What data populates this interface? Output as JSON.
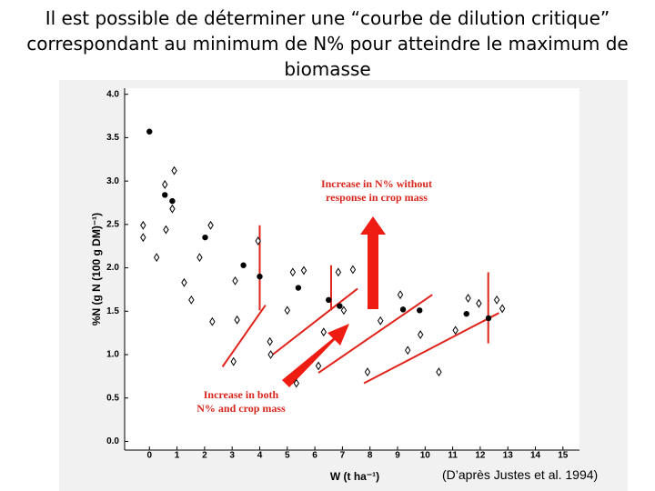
{
  "chart_data": {
    "type": "scatter",
    "title": "Il est possible de déterminer une “courbe de dilution critique” correspondant au minimum de N% pour atteindre le maximum de biomasse",
    "x_label": "W (t ha⁻¹)",
    "y_label": "%N (g N (100 g DM)⁻¹)",
    "xlim": [
      -0.9,
      15.6
    ],
    "ylim": [
      -0.1,
      4.07
    ],
    "xticks": [
      0,
      1,
      2,
      3,
      4,
      5,
      6,
      7,
      8,
      9,
      10,
      11,
      12,
      13,
      14,
      15
    ],
    "yticks": [
      {
        "value": 0,
        "label": "0.0"
      },
      {
        "value": 0.5,
        "label": "0.5"
      },
      {
        "value": 1,
        "label": "1.0"
      },
      {
        "value": 1.5,
        "label": "1.5"
      },
      {
        "value": 2,
        "label": "2.0"
      },
      {
        "value": 2.5,
        "label": "2.5"
      },
      {
        "value": 3,
        "label": "3.0"
      },
      {
        "value": 3.5,
        "label": "3.5"
      },
      {
        "value": 4,
        "label": "4.0"
      }
    ],
    "series": [
      {
        "marker": "circle",
        "color": "#000000",
        "x": [
          0,
          0.56,
          0.83,
          2.02,
          3.41,
          4.0,
          5.4,
          6.5,
          6.9,
          9.2,
          9.8,
          11.5,
          12.3
        ],
        "values": [
          3.57,
          2.84,
          2.77,
          2.35,
          2.03,
          1.9,
          1.77,
          1.63,
          1.56,
          1.52,
          1.51,
          1.47,
          1.42
        ]
      },
      {
        "marker": "diamond",
        "color": "#000000",
        "x": [
          -0.23,
          -0.23,
          0.26,
          0.56,
          0.9,
          0.83,
          0.6,
          1.26,
          1.52,
          1.82,
          2.22,
          2.28,
          3.11,
          3.18,
          3.05,
          3.94,
          4.37,
          4.4,
          5.0,
          5.2,
          5.6,
          5.33,
          6.13,
          6.32,
          6.85,
          7.38,
          7.05,
          7.91,
          8.38,
          9.1,
          9.37,
          9.83,
          10.5,
          11.1,
          11.56,
          11.95,
          12.6,
          12.8
        ],
        "values": [
          2.49,
          2.35,
          2.12,
          2.96,
          3.12,
          2.68,
          2.44,
          1.83,
          1.63,
          2.12,
          2.49,
          1.38,
          1.85,
          1.4,
          0.92,
          2.31,
          1.15,
          1.0,
          1.51,
          1.95,
          1.97,
          0.67,
          0.87,
          1.26,
          1.95,
          1.98,
          1.51,
          0.8,
          1.39,
          1.69,
          1.05,
          1.23,
          0.8,
          1.28,
          1.65,
          1.59,
          1.63,
          1.53
        ]
      }
    ],
    "fit_lines": [
      {
        "color": "#e0231b",
        "x": [
          2.65,
          4.21
        ],
        "y": [
          0.86,
          1.57
        ]
      },
      {
        "color": "#e0231b",
        "x": [
          4.47,
          7.55
        ],
        "y": [
          1.0,
          1.76
        ]
      },
      {
        "color": "#e0231b",
        "x": [
          6.13,
          10.26
        ],
        "y": [
          0.79,
          1.69
        ]
      },
      {
        "color": "#e0231b",
        "x": [
          7.78,
          12.68
        ],
        "y": [
          0.67,
          1.48
        ]
      },
      {
        "color": "#e0231b",
        "x": [
          4.0,
          4.0
        ],
        "y": [
          1.51,
          2.49
        ]
      },
      {
        "color": "#e0231b",
        "x": [
          6.59,
          6.59
        ],
        "y": [
          1.51,
          2.03
        ]
      },
      {
        "color": "#e0231b",
        "x": [
          12.29,
          12.29
        ],
        "y": [
          1.13,
          1.95
        ]
      }
    ],
    "annotations": [
      {
        "lines": [
          "Increase in N% without",
          "response in crop mass"
        ]
      },
      {
        "lines": [
          "Increase in both",
          "N% and crop mass"
        ]
      }
    ],
    "source": "(D’après Justes et al. 1994)"
  }
}
